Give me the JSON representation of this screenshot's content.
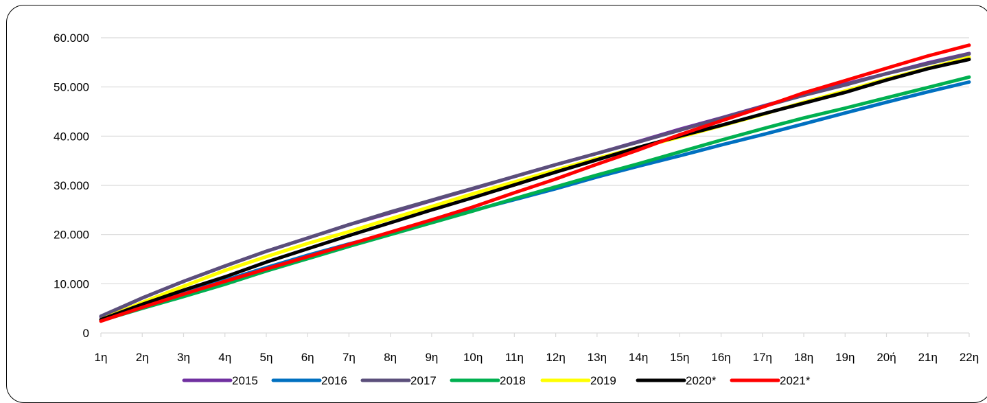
{
  "chart_data": {
    "type": "line",
    "categories": [
      "1η",
      "2η",
      "3η",
      "4η",
      "5η",
      "6η",
      "7η",
      "8η",
      "9η",
      "10η",
      "11η",
      "12η",
      "13η",
      "14η",
      "15η",
      "16η",
      "17η",
      "18η",
      "19η",
      "20ή",
      "21η",
      "22η"
    ],
    "y_tick_labels": [
      "0",
      "10.000",
      "20.000",
      "30.000",
      "40.000",
      "50.000",
      "60.000"
    ],
    "ylim": [
      0,
      60000
    ],
    "grid": true,
    "legend_position": "bottom",
    "series": [
      {
        "name": "2015",
        "color": "#7030A0",
        "values": [
          3300,
          7100,
          10500,
          13600,
          16600,
          19300,
          22000,
          24400,
          26900,
          29300,
          31800,
          34200,
          36500,
          38900,
          41400,
          43700,
          46100,
          48400,
          50600,
          52700,
          54900,
          56800
        ]
      },
      {
        "name": "2016",
        "color": "#0070C0",
        "values": [
          2700,
          5300,
          8000,
          10700,
          13300,
          15800,
          18100,
          20200,
          22600,
          24900,
          27100,
          29300,
          31700,
          33900,
          36000,
          38200,
          40300,
          42500,
          44700,
          46900,
          49000,
          51000
        ]
      },
      {
        "name": "2017",
        "color": "#5B4F7B",
        "values": [
          3400,
          7100,
          10500,
          13600,
          16600,
          19300,
          22000,
          24600,
          27000,
          29400,
          31800,
          34200,
          36500,
          38800,
          41200,
          43600,
          46000,
          48300,
          50400,
          52700,
          54700,
          56700
        ]
      },
      {
        "name": "2018",
        "color": "#00B050",
        "values": [
          2500,
          5000,
          7400,
          9900,
          12600,
          15100,
          17600,
          20000,
          22400,
          24800,
          27300,
          29700,
          32100,
          34400,
          36800,
          39200,
          41500,
          43700,
          45700,
          47800,
          49900,
          52000
        ]
      },
      {
        "name": "2019",
        "color": "#FFFF00",
        "values": [
          2700,
          6200,
          9500,
          12700,
          15500,
          18200,
          20600,
          23200,
          25700,
          28300,
          30700,
          33100,
          35500,
          37700,
          39800,
          42100,
          44400,
          46900,
          49200,
          51600,
          53800,
          56000
        ]
      },
      {
        "name": "2020*",
        "color": "#000000",
        "values": [
          2700,
          5800,
          8700,
          11400,
          14400,
          17100,
          19800,
          22400,
          25000,
          27500,
          30100,
          32700,
          35200,
          37700,
          40000,
          42200,
          44500,
          46700,
          48900,
          51400,
          53700,
          55600
        ]
      },
      {
        "name": "2021*",
        "color": "#FF0000",
        "values": [
          2400,
          5200,
          7900,
          10500,
          13000,
          15500,
          18000,
          20500,
          23000,
          25600,
          28500,
          31300,
          34300,
          37200,
          40300,
          43100,
          45900,
          48800,
          51300,
          53800,
          56300,
          58500
        ]
      }
    ]
  }
}
